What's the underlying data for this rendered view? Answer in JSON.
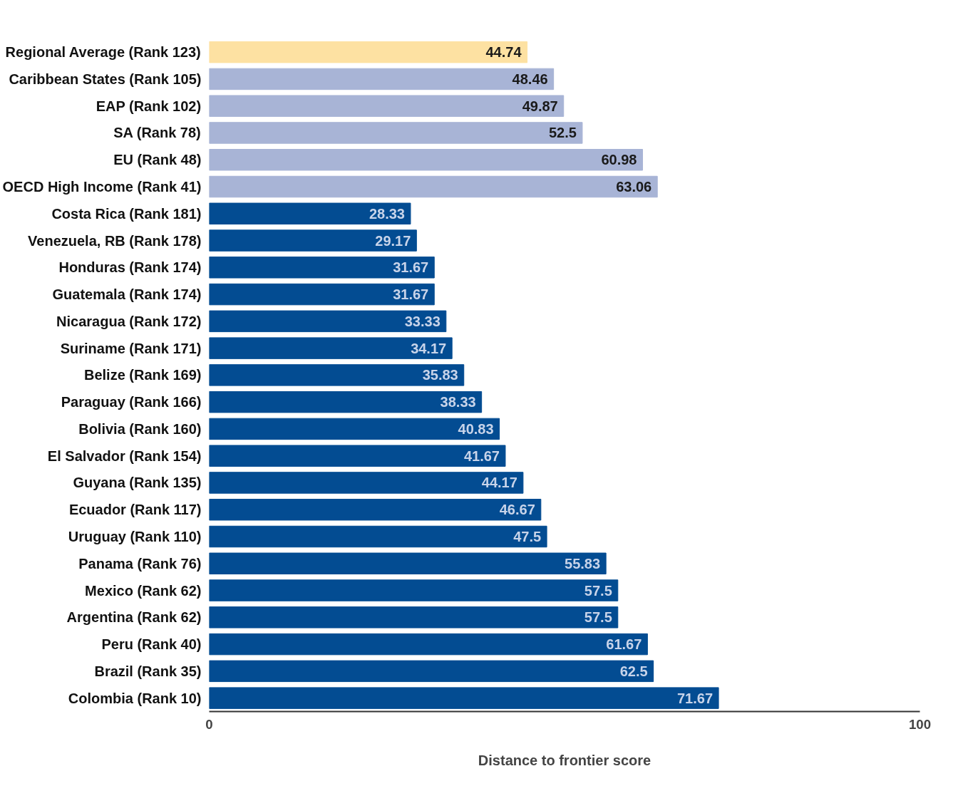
{
  "chart_data": {
    "type": "bar",
    "orientation": "horizontal",
    "xlabel": "Distance to frontier score",
    "categories": [
      "Regional Average (Rank 123)",
      "Caribbean States (Rank 105)",
      "EAP (Rank 102)",
      "SA (Rank 78)",
      "EU (Rank 48)",
      "OECD High Income (Rank 41)",
      "Costa Rica (Rank 181)",
      "Venezuela, RB (Rank 178)",
      "Honduras (Rank 174)",
      "Guatemala (Rank 174)",
      "Nicaragua (Rank 172)",
      "Suriname (Rank 171)",
      "Belize (Rank 169)",
      "Paraguay (Rank 166)",
      "Bolivia (Rank 160)",
      "El Salvador (Rank 154)",
      "Guyana (Rank 135)",
      "Ecuador (Rank 117)",
      "Uruguay (Rank 110)",
      "Panama (Rank 76)",
      "Mexico (Rank 62)",
      "Argentina (Rank 62)",
      "Peru (Rank 40)",
      "Brazil (Rank 35)",
      "Colombia (Rank 10)"
    ],
    "values": [
      44.74,
      48.46,
      49.87,
      52.5,
      60.98,
      63.06,
      28.33,
      29.17,
      31.67,
      31.67,
      33.33,
      34.17,
      35.83,
      38.33,
      40.83,
      41.67,
      44.17,
      46.67,
      47.5,
      55.83,
      57.5,
      57.5,
      61.67,
      62.5,
      71.67
    ],
    "colors": [
      "#fde1a2",
      "#a8b4d6",
      "#a8b4d6",
      "#a8b4d6",
      "#a8b4d6",
      "#a8b4d6",
      "#034c92",
      "#034c92",
      "#034c92",
      "#034c92",
      "#034c92",
      "#034c92",
      "#034c92",
      "#034c92",
      "#034c92",
      "#034c92",
      "#034c92",
      "#034c92",
      "#034c92",
      "#034c92",
      "#034c92",
      "#034c92",
      "#034c92",
      "#034c92",
      "#034c92"
    ],
    "xlim": [
      0,
      100
    ],
    "xticks": [
      0,
      100
    ],
    "data_labels": true,
    "grid": false
  }
}
